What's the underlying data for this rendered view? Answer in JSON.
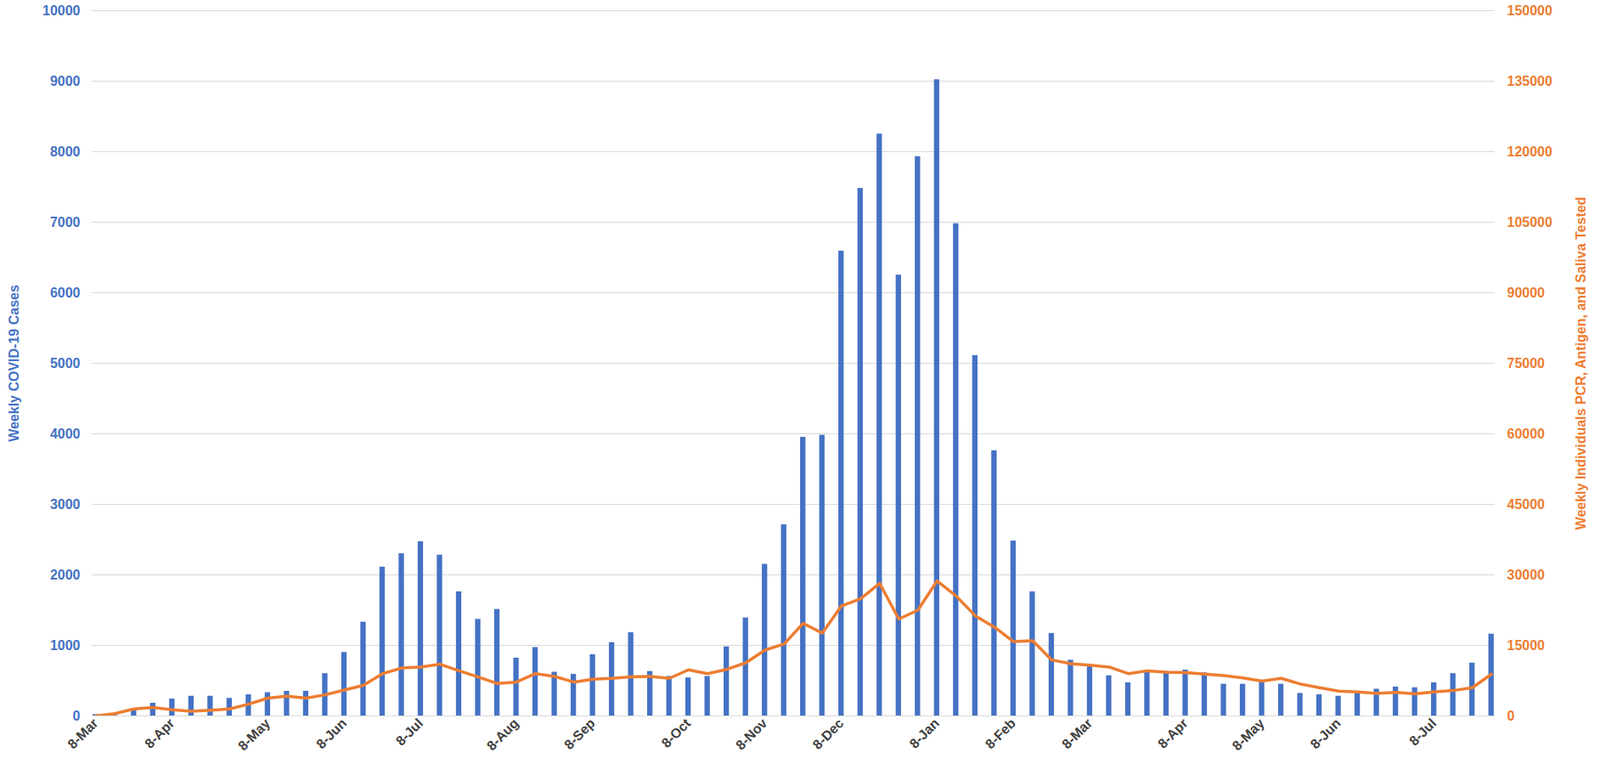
{
  "chart_data": {
    "type": "bar",
    "categories": [
      "8-Mar",
      null,
      null,
      null,
      "8-Apr",
      null,
      null,
      null,
      null,
      "8-May",
      null,
      null,
      null,
      "8-Jun",
      null,
      null,
      null,
      "8-Jul",
      null,
      null,
      null,
      null,
      "8-Aug",
      null,
      null,
      null,
      "8-Sep",
      null,
      null,
      null,
      null,
      "8-Oct",
      null,
      null,
      null,
      "8-Nov",
      null,
      null,
      null,
      "8-Dec",
      null,
      null,
      null,
      null,
      "8-Jan",
      null,
      null,
      null,
      "8-Feb",
      null,
      null,
      null,
      "8-Mar",
      null,
      null,
      null,
      null,
      "8-Apr",
      null,
      null,
      null,
      "8-May",
      null,
      null,
      null,
      "8-Jun",
      null,
      null,
      null,
      null,
      "8-Jul",
      null,
      null,
      null
    ],
    "series": [
      {
        "type": "bar",
        "color": "#4472c4",
        "values": [
          20,
          10,
          80,
          180,
          240,
          280,
          280,
          250,
          300,
          330,
          350,
          350,
          600,
          900,
          1330,
          2110,
          2300,
          2470,
          2280,
          1760,
          1370,
          1510,
          820,
          970,
          620,
          590,
          870,
          1040,
          1180,
          630,
          560,
          540,
          560,
          980,
          1390,
          2150,
          2710,
          3950,
          3980,
          6590,
          7480,
          8250,
          6250,
          7930,
          9020,
          6980,
          5110,
          3760,
          2480,
          1760,
          1170,
          790,
          700,
          570,
          470,
          620,
          630,
          650,
          610,
          450,
          450,
          480,
          450,
          320,
          300,
          280,
          330,
          380,
          410,
          400,
          470,
          600,
          750,
          1160
        ]
      },
      {
        "type": "line",
        "axis": "y2",
        "color": "#ed7d31",
        "values": [
          0,
          500,
          1500,
          1800,
          1300,
          1000,
          1200,
          1500,
          2500,
          3800,
          4200,
          3800,
          4500,
          5500,
          6500,
          9000,
          10200,
          10400,
          11000,
          9600,
          8300,
          6900,
          7200,
          9000,
          8400,
          7200,
          7800,
          8000,
          8300,
          8400,
          8000,
          9800,
          9000,
          9900,
          11300,
          14000,
          15300,
          19700,
          17600,
          23400,
          24900,
          28200,
          20600,
          22500,
          28700,
          25500,
          21300,
          18900,
          15800,
          16000,
          11900,
          11100,
          10800,
          10400,
          9000,
          9600,
          9300,
          9200,
          8900,
          8600,
          8100,
          7400,
          8000,
          6800,
          6000,
          5300,
          5100,
          4800,
          5000,
          4700,
          5100,
          5400,
          6000,
          8900
        ]
      }
    ],
    "y_label": "Weekly COVID-19 Cases",
    "y2_label": "Weekly Individuals PCR, Antigen, and Saliva Tested",
    "ylim": [
      0,
      10000
    ],
    "yticks": [
      0,
      1000,
      2000,
      3000,
      4000,
      5000,
      6000,
      7000,
      8000,
      9000,
      10000
    ],
    "y2lim": [
      0,
      150000
    ],
    "y2ticks": [
      0,
      15000,
      30000,
      45000,
      60000,
      75000,
      90000,
      105000,
      120000,
      135000,
      150000
    ],
    "grid": true
  }
}
